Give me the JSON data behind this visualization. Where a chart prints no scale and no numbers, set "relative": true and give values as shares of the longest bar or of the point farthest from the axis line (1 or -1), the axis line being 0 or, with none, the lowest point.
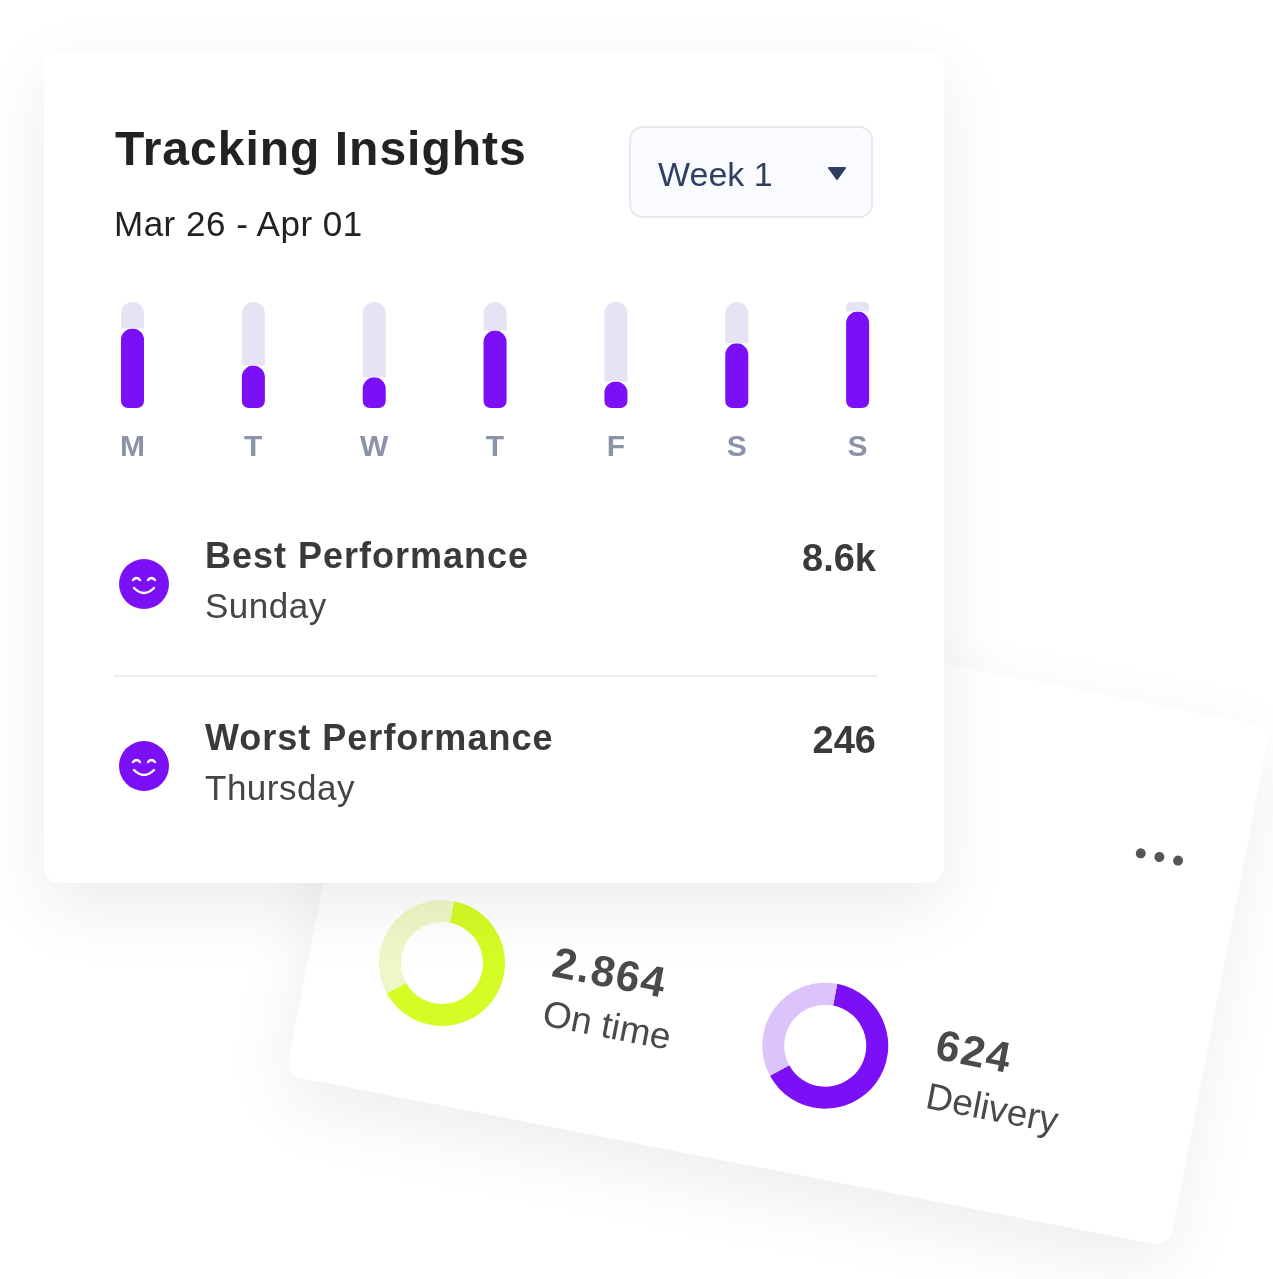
{
  "chart_data": [
    {
      "type": "bar",
      "title": "Tracking Insights",
      "subtitle": "Mar 26 - Apr 01",
      "annotations": [
        "Week 1"
      ],
      "categories": [
        "M",
        "T",
        "W",
        "T",
        "F",
        "S",
        "S"
      ],
      "relative": true,
      "stacked": true,
      "series": [
        {
          "color": "#7b0ff5",
          "values": [
            0.75,
            0.4,
            0.29,
            0.73,
            0.25,
            0.61,
            0.91
          ]
        },
        {
          "color": "#e6e3f5",
          "values": [
            0.25,
            0.6,
            0.71,
            0.27,
            0.75,
            0.39,
            0.09
          ]
        }
      ]
    },
    {
      "type": "other",
      "annotations": [
        "Best Performance",
        "Sunday",
        "8.6k",
        "Worst Performance",
        "Thursday",
        "246"
      ]
    },
    {
      "type": "donut",
      "title": "On time",
      "annotations": [
        "2.864"
      ],
      "categories": [
        null,
        null
      ],
      "values": [
        64,
        36
      ],
      "colors": [
        "#d4fc25",
        "#eef8c6"
      ]
    },
    {
      "type": "donut",
      "title": "Delivery",
      "annotations": [
        "624"
      ],
      "categories": [
        null,
        null
      ],
      "values": [
        64,
        36
      ],
      "colors": [
        "#7b0ff5",
        "#dcc4fb"
      ]
    }
  ]
}
